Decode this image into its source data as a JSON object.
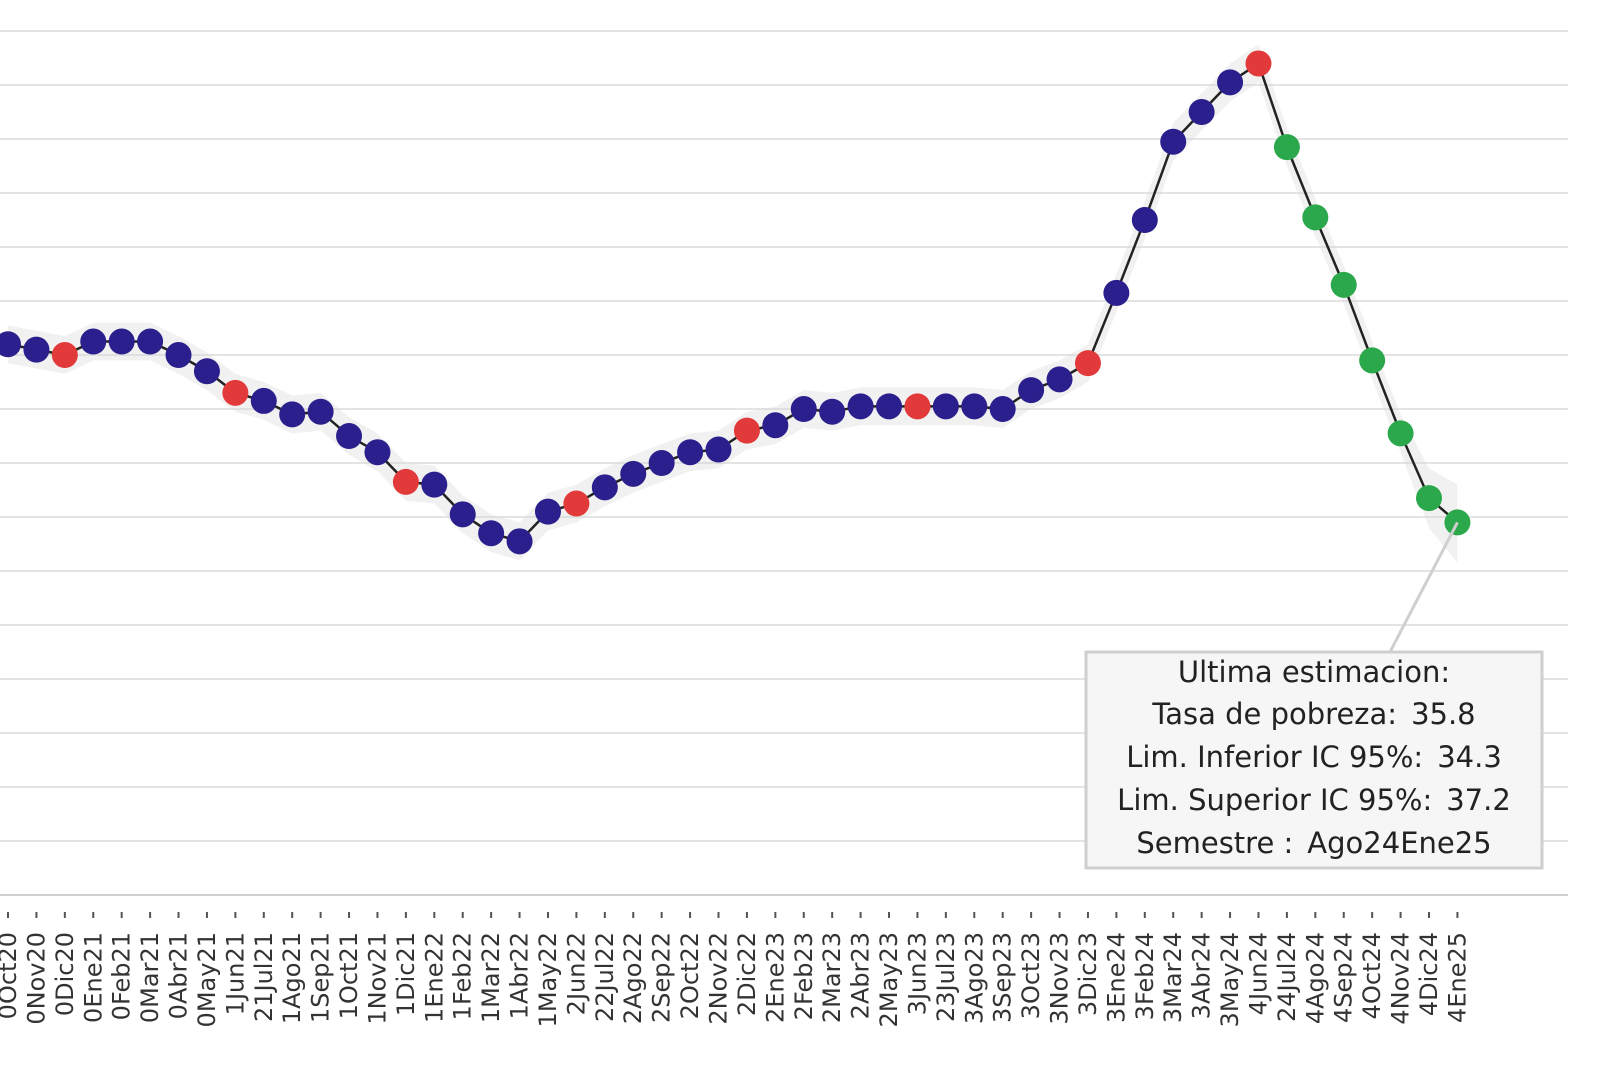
{
  "chart_data": {
    "type": "line",
    "categories": [
      "0Oct20",
      "0Nov20",
      "0Dic20",
      "0Ene21",
      "0Feb21",
      "0Mar21",
      "0Abr21",
      "0May21",
      "1Jun21",
      "21Jul21",
      "1Ago21",
      "1Sep21",
      "1Oct21",
      "1Nov21",
      "1Dic21",
      "1Ene22",
      "1Feb22",
      "1Mar22",
      "1Abr22",
      "1May22",
      "2Jun22",
      "22Jul22",
      "2Ago22",
      "2Sep22",
      "2Oct22",
      "2Nov22",
      "2Dic22",
      "2Ene23",
      "2Feb23",
      "2Mar23",
      "2Abr23",
      "2May23",
      "3Jun23",
      "23Jul23",
      "3Ago23",
      "3Sep23",
      "3Oct23",
      "3Nov23",
      "3Dic23",
      "3Ene24",
      "3Feb24",
      "3Mar24",
      "3Abr24",
      "3May24",
      "4Jun24",
      "24Jul24",
      "4Ago24",
      "4Sep24",
      "4Oct24",
      "4Nov24",
      "4Dic24",
      "4Ene25"
    ],
    "series": [
      {
        "color": "#222222",
        "values": [
          42.4,
          42.2,
          42.0,
          42.5,
          42.5,
          42.5,
          42.0,
          41.4,
          40.6,
          40.3,
          39.8,
          39.9,
          39.0,
          38.4,
          37.3,
          37.2,
          36.1,
          35.4,
          35.1,
          36.2,
          36.5,
          37.1,
          37.6,
          38.0,
          38.4,
          38.5,
          39.2,
          39.4,
          40.0,
          39.9,
          40.1,
          40.1,
          40.1,
          40.1,
          40.1,
          40.0,
          40.7,
          41.1,
          41.7,
          44.3,
          47.0,
          49.9,
          51.0,
          52.1,
          52.8,
          49.7,
          47.1,
          44.6,
          41.8,
          39.1,
          36.7,
          35.8
        ],
        "point_colors": [
          "#2a1f8c",
          "#2a1f8c",
          "#e23a3a",
          "#2a1f8c",
          "#2a1f8c",
          "#2a1f8c",
          "#2a1f8c",
          "#2a1f8c",
          "#e23a3a",
          "#2a1f8c",
          "#2a1f8c",
          "#2a1f8c",
          "#2a1f8c",
          "#2a1f8c",
          "#e23a3a",
          "#2a1f8c",
          "#2a1f8c",
          "#2a1f8c",
          "#2a1f8c",
          "#2a1f8c",
          "#e23a3a",
          "#2a1f8c",
          "#2a1f8c",
          "#2a1f8c",
          "#2a1f8c",
          "#2a1f8c",
          "#e23a3a",
          "#2a1f8c",
          "#2a1f8c",
          "#2a1f8c",
          "#2a1f8c",
          "#2a1f8c",
          "#e23a3a",
          "#2a1f8c",
          "#2a1f8c",
          "#2a1f8c",
          "#2a1f8c",
          "#2a1f8c",
          "#e23a3a",
          "#2a1f8c",
          "#2a1f8c",
          "#2a1f8c",
          "#2a1f8c",
          "#2a1f8c",
          "#e23a3a",
          "#2ca84c",
          "#2ca84c",
          "#2ca84c",
          "#2ca84c",
          "#2ca84c",
          "#2ca84c",
          "#2ca84c"
        ]
      },
      {
        "color": "#d8d8d8",
        "values": [
          41.7,
          41.5,
          41.3,
          41.8,
          41.8,
          41.8,
          41.3,
          40.7,
          39.9,
          39.6,
          39.1,
          39.2,
          38.3,
          37.7,
          36.6,
          36.5,
          35.4,
          34.7,
          34.4,
          35.5,
          35.8,
          36.4,
          36.9,
          37.3,
          37.7,
          37.8,
          38.5,
          38.7,
          39.3,
          39.2,
          39.4,
          39.4,
          39.4,
          39.4,
          39.4,
          39.3,
          40.0,
          40.4,
          41.0,
          43.6,
          46.3,
          49.2,
          50.3,
          51.4,
          52.1,
          49.0,
          46.4,
          43.9,
          41.1,
          38.4,
          35.6,
          34.3
        ]
      },
      {
        "color": "#d8d8d8",
        "values": [
          43.1,
          42.9,
          42.7,
          43.2,
          43.2,
          43.2,
          42.7,
          42.1,
          41.3,
          41.0,
          40.5,
          40.6,
          39.7,
          39.1,
          38.0,
          37.9,
          36.8,
          36.1,
          35.8,
          36.9,
          37.2,
          37.8,
          38.3,
          38.7,
          39.1,
          39.2,
          39.9,
          40.1,
          40.7,
          40.6,
          40.8,
          40.8,
          40.8,
          40.8,
          40.8,
          40.7,
          41.4,
          41.8,
          42.4,
          45.0,
          47.7,
          50.6,
          51.7,
          52.8,
          53.5,
          50.4,
          47.8,
          45.3,
          42.5,
          39.8,
          37.8,
          37.2
        ]
      }
    ],
    "ylim": [
      22,
      55.15
    ],
    "yticks": [
      22,
      24,
      26,
      28,
      30,
      32,
      34,
      36,
      38,
      40,
      42,
      44,
      46,
      48,
      50,
      52,
      54
    ],
    "grid": true,
    "tooltip": {
      "title": "Ultima estimacion:",
      "lines": [
        {
          "label": "Tasa de pobreza:",
          "value": 35.8
        },
        {
          "label": "Lim. Inferior IC 95%:",
          "value": 34.3
        },
        {
          "label": "Lim. Superior IC 95%:",
          "value": 37.2
        },
        {
          "label": "Semestre :",
          "value": "Ago24Ene25"
        }
      ]
    }
  }
}
